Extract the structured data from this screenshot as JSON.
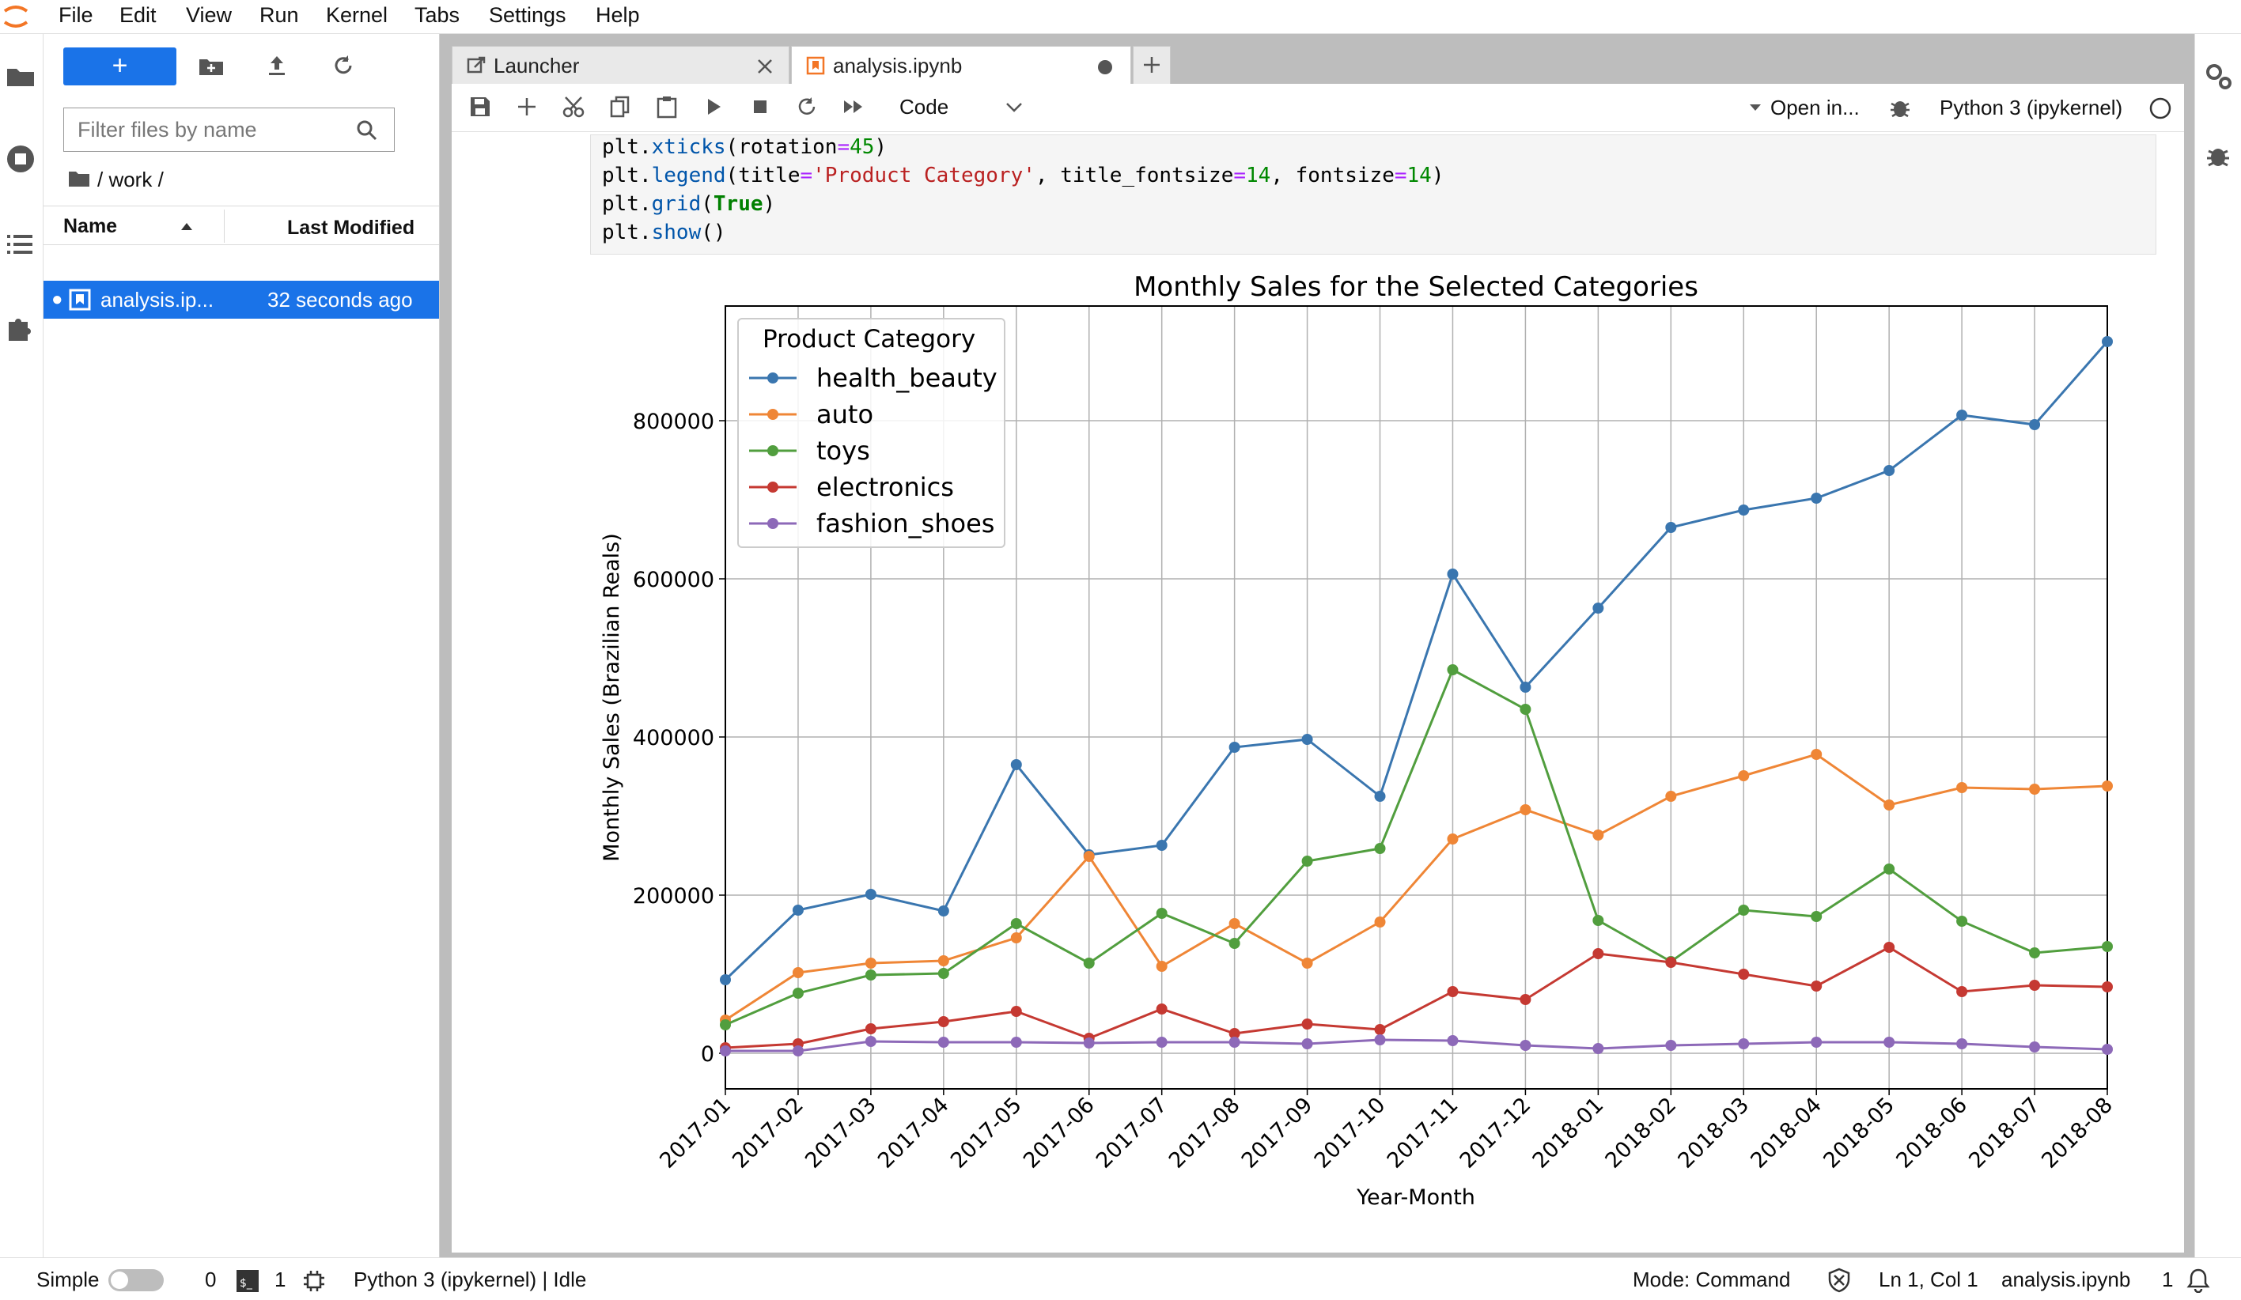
{
  "menu": [
    "File",
    "Edit",
    "View",
    "Run",
    "Kernel",
    "Tabs",
    "Settings",
    "Help"
  ],
  "filebrowser": {
    "new_label": "+",
    "filter_placeholder": "Filter files by name",
    "path": "/ work /",
    "col_name": "Name",
    "col_modified": "Last Modified",
    "files": [
      {
        "name": "analysis.ip...",
        "modified": "32 seconds ago"
      }
    ]
  },
  "tabs": [
    {
      "label": "Launcher"
    },
    {
      "label": "analysis.ipynb"
    }
  ],
  "toolbar": {
    "cell_type": "Code",
    "open_in": "Open in...",
    "kernel": "Python 3 (ipykernel)"
  },
  "code_lines": [
    "plt.xticks(rotation=45)",
    "plt.legend(title='Product Category', title_fontsize=14, fontsize=14)",
    "plt.grid(True)",
    "plt.show()"
  ],
  "statusbar": {
    "mode_label": "Simple",
    "count_a": "0",
    "count_b": "1",
    "kernel_status": "Python 3 (ipykernel) | Idle",
    "mode": "Mode: Command",
    "position": "Ln 1, Col 1",
    "filename": "analysis.ipynb",
    "notifications": "1"
  },
  "colors": {
    "accent": "#1a73e8",
    "health_beauty": "#3a76af",
    "auto": "#ef8636",
    "toys": "#519e3e",
    "electronics": "#c53932",
    "fashion_shoes": "#8d69b8"
  },
  "chart_data": {
    "type": "line",
    "title": "Monthly Sales for the Selected Categories",
    "xlabel": "Year-Month",
    "ylabel": "Monthly Sales (Brazilian Reals)",
    "legend_title": "Product Category",
    "legend_position": "top-left",
    "grid": true,
    "ylim": [
      -45000,
      945000
    ],
    "yticks": [
      0,
      200000,
      400000,
      600000,
      800000
    ],
    "categories": [
      "2017-01",
      "2017-02",
      "2017-03",
      "2017-04",
      "2017-05",
      "2017-06",
      "2017-07",
      "2017-08",
      "2017-09",
      "2017-10",
      "2017-11",
      "2017-12",
      "2018-01",
      "2018-02",
      "2018-03",
      "2018-04",
      "2018-05",
      "2018-06",
      "2018-07",
      "2018-08"
    ],
    "series": [
      {
        "name": "health_beauty",
        "color": "#3a76af",
        "values": [
          93000,
          181000,
          201000,
          180000,
          365000,
          251000,
          263000,
          387000,
          397000,
          325000,
          606000,
          463000,
          563000,
          665000,
          687000,
          702000,
          737000,
          807000,
          795000,
          900000
        ]
      },
      {
        "name": "auto",
        "color": "#ef8636",
        "values": [
          42000,
          102000,
          114000,
          117000,
          146000,
          249000,
          110000,
          164000,
          114000,
          166000,
          271000,
          308000,
          276000,
          325000,
          351000,
          378000,
          314000,
          336000,
          334000,
          338000
        ]
      },
      {
        "name": "toys",
        "color": "#519e3e",
        "values": [
          36000,
          76000,
          99000,
          101000,
          164000,
          114000,
          177000,
          139000,
          243000,
          259000,
          485000,
          435000,
          168000,
          116000,
          181000,
          173000,
          233000,
          167000,
          127000,
          135000
        ]
      },
      {
        "name": "electronics",
        "color": "#c53932",
        "values": [
          7000,
          12000,
          31000,
          40000,
          53000,
          19000,
          56000,
          25000,
          37000,
          30000,
          78000,
          68000,
          126000,
          115000,
          100000,
          85000,
          134000,
          78000,
          86000,
          84000
        ]
      },
      {
        "name": "fashion_shoes",
        "color": "#8d69b8",
        "values": [
          3000,
          3000,
          15000,
          14000,
          14000,
          13000,
          14000,
          14000,
          12000,
          17000,
          16000,
          10000,
          6000,
          10000,
          12000,
          14000,
          14000,
          12000,
          8000,
          5000
        ]
      }
    ]
  }
}
